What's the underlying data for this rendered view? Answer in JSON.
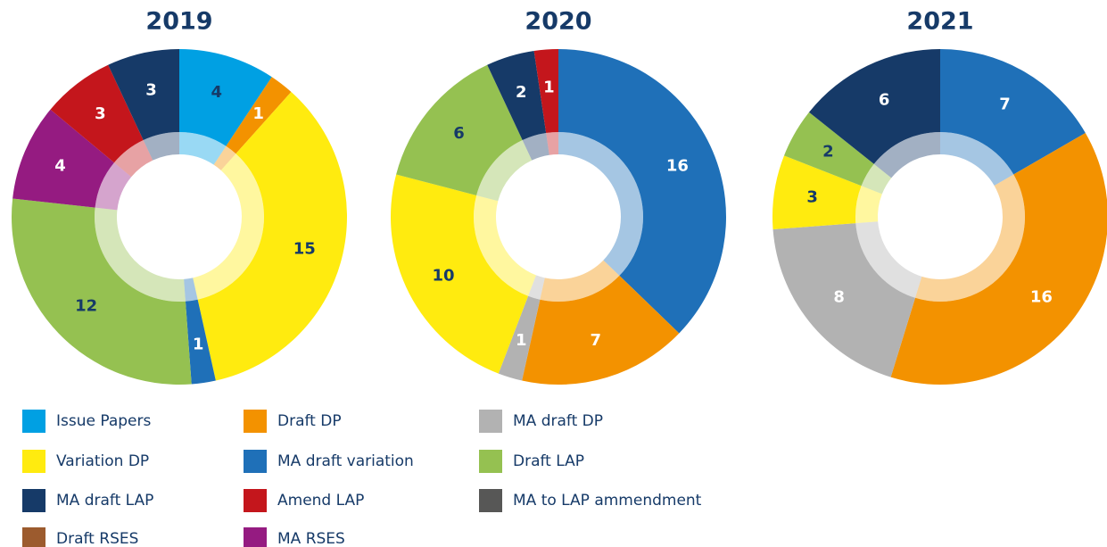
{
  "chart_data": [
    {
      "type": "pie",
      "title": "2019",
      "categories": [
        "Issue Papers",
        "Draft DP",
        "Variation DP",
        "MA draft variation",
        "Draft LAP",
        "MA RSES",
        "Amend LAP",
        "MA draft LAP"
      ],
      "values": [
        4,
        1,
        15,
        1,
        12,
        4,
        3,
        3
      ]
    },
    {
      "type": "pie",
      "title": "2020",
      "categories": [
        "MA draft variation",
        "Draft DP",
        "MA draft DP",
        "Variation DP",
        "Draft LAP",
        "MA draft LAP",
        "Amend LAP"
      ],
      "values": [
        16,
        7,
        1,
        10,
        6,
        2,
        1
      ]
    },
    {
      "type": "pie",
      "title": "2021",
      "categories": [
        "MA draft variation",
        "Draft DP",
        "MA draft DP",
        "Variation DP",
        "Draft LAP",
        "MA draft LAP"
      ],
      "values": [
        7,
        16,
        8,
        3,
        2,
        6
      ]
    }
  ],
  "legend": [
    {
      "name": "Issue Papers",
      "color": "#00a0e3",
      "label_color": "#163a68"
    },
    {
      "name": "Draft DP",
      "color": "#f39200",
      "label_color": "#ffffff"
    },
    {
      "name": "MA draft DP",
      "color": "#b2b2b2",
      "label_color": "#ffffff"
    },
    {
      "name": "Variation DP",
      "color": "#ffeb0f",
      "label_color": "#163a68"
    },
    {
      "name": "MA draft variation",
      "color": "#1f70b8",
      "label_color": "#ffffff"
    },
    {
      "name": "Draft LAP",
      "color": "#95c151",
      "label_color": "#163a68"
    },
    {
      "name": "MA draft LAP",
      "color": "#163a68",
      "label_color": "#ffffff"
    },
    {
      "name": "Amend LAP",
      "color": "#c4161c",
      "label_color": "#ffffff"
    },
    {
      "name": "MA to LAP ammendment",
      "color": "#575756",
      "label_color": "#ffffff"
    },
    {
      "name": "Draft RSES",
      "color": "#9c5b2e",
      "label_color": "#ffffff"
    },
    {
      "name": "MA RSES",
      "color": "#951b81",
      "label_color": "#ffffff"
    }
  ]
}
